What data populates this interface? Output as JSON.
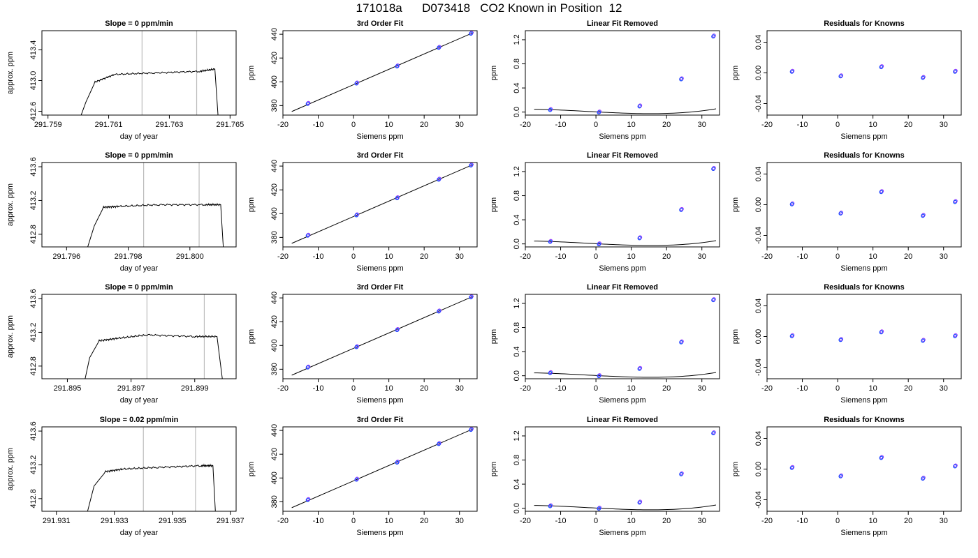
{
  "page": {
    "title_left": "171018a",
    "title_mid": "D073418",
    "title_right": "CO2 Known in Position  12"
  },
  "colors": {
    "trace": "#000000",
    "frame": "#000000",
    "vline": "#bbbbbb",
    "point_blue": "#1f3fff",
    "point_purple": "#9b30ff",
    "point_cyan": "#30a8ff"
  },
  "chart_data": [
    {
      "type": "line",
      "row": 0,
      "col": 0,
      "title": "Slope =  0  ppm/min",
      "xlabel": "day of year",
      "ylabel": "approx. ppm",
      "xlim": [
        291.7588,
        291.7652
      ],
      "ylim": [
        412.55,
        413.65
      ],
      "xticks": [
        "291.759",
        "291.761",
        "291.763",
        "291.765"
      ],
      "yticks": [
        "412.6",
        "413.0",
        "413.4"
      ],
      "trace_x": [
        291.76,
        291.76025,
        291.76055,
        291.7612,
        291.7625,
        291.764,
        291.7645,
        291.76462
      ],
      "trace_y": [
        412.45,
        412.72,
        412.98,
        413.08,
        413.1,
        413.12,
        413.15,
        412.45
      ],
      "vlines": [
        291.7621,
        291.7639
      ]
    },
    {
      "type": "scatter",
      "row": 0,
      "col": 1,
      "title": "3rd Order Fit",
      "xlabel": "Siemens ppm",
      "ylabel": "ppm",
      "xlim": [
        -20,
        35
      ],
      "ylim": [
        372,
        443
      ],
      "xticks": [
        "-20",
        "-10",
        "0",
        "10",
        "20",
        "30"
      ],
      "yticks": [
        "380",
        "400",
        "420",
        "440"
      ],
      "points_x": [
        -12.9,
        0.9,
        12.4,
        24.2,
        33.3
      ],
      "points_y": [
        381.8,
        398.9,
        413.3,
        428.9,
        440.8
      ],
      "fit": {
        "kind": "line",
        "x": [
          -17.5,
          34
        ],
        "y": [
          375,
          441.5
        ]
      }
    },
    {
      "type": "scatter",
      "row": 0,
      "col": 2,
      "title": "Linear Fit Removed",
      "xlabel": "Siemens ppm",
      "ylabel": "ppm",
      "xlim": [
        -20,
        35
      ],
      "ylim": [
        -0.05,
        1.35
      ],
      "xticks": [
        "-20",
        "-10",
        "0",
        "10",
        "20",
        "30"
      ],
      "yticks": [
        "0.0",
        "0.4",
        "0.8",
        "1.2"
      ],
      "points_x": [
        -12.9,
        0.9,
        12.4,
        24.2,
        33.3
      ],
      "points_y": [
        0.04,
        0.0,
        0.1,
        0.55,
        1.26
      ],
      "fit": {
        "kind": "cubic",
        "coef": [
          0.00358,
          -0.00305,
          2.5e-05,
          3.18e-06
        ],
        "x0": -17.5,
        "x1": 34
      }
    },
    {
      "type": "scatter",
      "row": 0,
      "col": 3,
      "title": "Residuals for Knowns",
      "xlabel": "Siemens ppm",
      "ylabel": "ppm",
      "xlim": [
        -20,
        35
      ],
      "ylim": [
        -0.055,
        0.055
      ],
      "xticks": [
        "-20",
        "-10",
        "0",
        "10",
        "20",
        "30"
      ],
      "yticks": [
        "-0.04",
        "0.00",
        "0.04"
      ],
      "points_x": [
        -12.9,
        0.9,
        12.4,
        24.2,
        33.3
      ],
      "points_y": [
        0.002,
        -0.004,
        0.008,
        -0.006,
        0.002
      ]
    },
    {
      "type": "line",
      "row": 1,
      "col": 0,
      "title": "Slope =  0  ppm/min",
      "xlabel": "day of year",
      "ylabel": "approx. ppm",
      "xlim": [
        291.7952,
        291.8015
      ],
      "ylim": [
        412.65,
        413.65
      ],
      "xticks": [
        "291.796",
        "291.798",
        "291.800"
      ],
      "yticks": [
        "412.8",
        "413.2",
        "413.6"
      ],
      "trace_x": [
        291.7966,
        291.7969,
        291.7972,
        291.7977,
        291.799,
        291.8005,
        291.801,
        291.8011
      ],
      "trace_y": [
        412.55,
        412.9,
        413.12,
        413.13,
        413.15,
        413.15,
        413.15,
        412.55
      ],
      "vlines": [
        291.7985,
        291.8003
      ]
    },
    {
      "type": "scatter",
      "row": 1,
      "col": 1,
      "title": "3rd Order Fit",
      "xlabel": "Siemens ppm",
      "ylabel": "ppm",
      "xlim": [
        -20,
        35
      ],
      "ylim": [
        372,
        443
      ],
      "xticks": [
        "-20",
        "-10",
        "0",
        "10",
        "20",
        "30"
      ],
      "yticks": [
        "380",
        "400",
        "420",
        "440"
      ],
      "points_x": [
        -12.9,
        0.9,
        12.4,
        24.2,
        33.3
      ],
      "points_y": [
        381.8,
        398.9,
        413.3,
        428.9,
        440.8
      ],
      "fit": {
        "kind": "line",
        "x": [
          -17.5,
          34
        ],
        "y": [
          375,
          441.5
        ]
      }
    },
    {
      "type": "scatter",
      "row": 1,
      "col": 2,
      "title": "Linear Fit Removed",
      "xlabel": "Siemens ppm",
      "ylabel": "ppm",
      "xlim": [
        -20,
        35
      ],
      "ylim": [
        -0.05,
        1.35
      ],
      "xticks": [
        "-20",
        "-10",
        "0",
        "10",
        "20",
        "30"
      ],
      "yticks": [
        "0.0",
        "0.4",
        "0.8",
        "1.2"
      ],
      "points_x": [
        -12.9,
        0.9,
        12.4,
        24.2,
        33.3
      ],
      "points_y": [
        0.04,
        0.0,
        0.1,
        0.57,
        1.25
      ],
      "fit": {
        "kind": "cubic",
        "coef": [
          0.00358,
          -0.00305,
          2.5e-05,
          3.18e-06
        ],
        "x0": -17.5,
        "x1": 34
      }
    },
    {
      "type": "scatter",
      "row": 1,
      "col": 3,
      "title": "Residuals for Knowns",
      "xlabel": "Siemens ppm",
      "ylabel": "ppm",
      "xlim": [
        -20,
        35
      ],
      "ylim": [
        -0.055,
        0.055
      ],
      "xticks": [
        "-20",
        "-10",
        "0",
        "10",
        "20",
        "30"
      ],
      "yticks": [
        "-0.04",
        "0.00",
        "0.04"
      ],
      "points_x": [
        -12.9,
        0.9,
        12.4,
        24.2,
        33.3
      ],
      "points_y": [
        0.001,
        -0.011,
        0.017,
        -0.014,
        0.004
      ]
    },
    {
      "type": "line",
      "row": 2,
      "col": 0,
      "title": "Slope =  0  ppm/min",
      "xlabel": "day of year",
      "ylabel": "approx. ppm",
      "xlim": [
        291.8942,
        291.9003
      ],
      "ylim": [
        412.65,
        413.65
      ],
      "xticks": [
        "291.895",
        "291.897",
        "291.899"
      ],
      "yticks": [
        "412.8",
        "413.2",
        "413.6"
      ],
      "trace_x": [
        291.8955,
        291.8957,
        291.896,
        291.8966,
        291.8975,
        291.899,
        291.8997,
        291.8999
      ],
      "trace_y": [
        412.55,
        412.9,
        413.1,
        413.13,
        413.17,
        413.15,
        413.15,
        412.55
      ],
      "vlines": [
        291.8975,
        291.8993
      ]
    },
    {
      "type": "scatter",
      "row": 2,
      "col": 1,
      "title": "3rd Order Fit",
      "xlabel": "Siemens ppm",
      "ylabel": "ppm",
      "xlim": [
        -20,
        35
      ],
      "ylim": [
        372,
        443
      ],
      "xticks": [
        "-20",
        "-10",
        "0",
        "10",
        "20",
        "30"
      ],
      "yticks": [
        "380",
        "400",
        "420",
        "440"
      ],
      "points_x": [
        -12.9,
        0.9,
        12.4,
        24.2,
        33.3
      ],
      "points_y": [
        381.8,
        398.9,
        413.3,
        428.9,
        440.8
      ],
      "fit": {
        "kind": "line",
        "x": [
          -17.5,
          34
        ],
        "y": [
          375,
          441.5
        ]
      }
    },
    {
      "type": "scatter",
      "row": 2,
      "col": 2,
      "title": "Linear Fit Removed",
      "xlabel": "Siemens ppm",
      "ylabel": "ppm",
      "xlim": [
        -20,
        35
      ],
      "ylim": [
        -0.05,
        1.35
      ],
      "xticks": [
        "-20",
        "-10",
        "0",
        "10",
        "20",
        "30"
      ],
      "yticks": [
        "0.0",
        "0.4",
        "0.8",
        "1.2"
      ],
      "points_x": [
        -12.9,
        0.9,
        12.4,
        24.2,
        33.3
      ],
      "points_y": [
        0.05,
        0.0,
        0.12,
        0.56,
        1.26
      ],
      "fit": {
        "kind": "cubic",
        "coef": [
          0.00358,
          -0.00305,
          2.5e-05,
          3.18e-06
        ],
        "x0": -17.5,
        "x1": 34
      }
    },
    {
      "type": "scatter",
      "row": 2,
      "col": 3,
      "title": "Residuals for Knowns",
      "xlabel": "Siemens ppm",
      "ylabel": "ppm",
      "xlim": [
        -20,
        35
      ],
      "ylim": [
        -0.055,
        0.055
      ],
      "xticks": [
        "-20",
        "-10",
        "0",
        "10",
        "20",
        "30"
      ],
      "yticks": [
        "-0.04",
        "0.00",
        "0.04"
      ],
      "points_x": [
        -12.9,
        0.9,
        12.4,
        24.2,
        33.3
      ],
      "points_y": [
        0.001,
        -0.004,
        0.006,
        -0.005,
        0.001
      ]
    },
    {
      "type": "line",
      "row": 3,
      "col": 0,
      "title": "Slope =  0.02  ppm/min",
      "xlabel": "day of year",
      "ylabel": "approx. ppm",
      "xlim": [
        291.9305,
        291.9372
      ],
      "ylim": [
        412.65,
        413.65
      ],
      "xticks": [
        "291.931",
        "291.933",
        "291.935",
        "291.937"
      ],
      "yticks": [
        "412.8",
        "413.2",
        "413.6"
      ],
      "trace_x": [
        291.932,
        291.9323,
        291.9327,
        291.9333,
        291.9345,
        291.936,
        291.9364,
        291.9365
      ],
      "trace_y": [
        412.55,
        412.95,
        413.12,
        413.15,
        413.17,
        413.19,
        413.19,
        412.55
      ],
      "vlines": [
        291.934,
        291.9358
      ]
    },
    {
      "type": "scatter",
      "row": 3,
      "col": 1,
      "title": "3rd Order Fit",
      "xlabel": "Siemens ppm",
      "ylabel": "ppm",
      "xlim": [
        -20,
        35
      ],
      "ylim": [
        372,
        443
      ],
      "xticks": [
        "-20",
        "-10",
        "0",
        "10",
        "20",
        "30"
      ],
      "yticks": [
        "380",
        "400",
        "420",
        "440"
      ],
      "points_x": [
        -12.9,
        0.9,
        12.4,
        24.2,
        33.3
      ],
      "points_y": [
        381.8,
        398.9,
        413.3,
        428.9,
        440.8
      ],
      "fit": {
        "kind": "line",
        "x": [
          -17.5,
          34
        ],
        "y": [
          375,
          441.5
        ]
      }
    },
    {
      "type": "scatter",
      "row": 3,
      "col": 2,
      "title": "Linear Fit Removed",
      "xlabel": "Siemens ppm",
      "ylabel": "ppm",
      "xlim": [
        -20,
        35
      ],
      "ylim": [
        -0.05,
        1.35
      ],
      "xticks": [
        "-20",
        "-10",
        "0",
        "10",
        "20",
        "30"
      ],
      "yticks": [
        "0.0",
        "0.4",
        "0.8",
        "1.2"
      ],
      "points_x": [
        -12.9,
        0.9,
        12.4,
        24.2,
        33.3
      ],
      "points_y": [
        0.04,
        0.0,
        0.1,
        0.57,
        1.25
      ],
      "fit": {
        "kind": "cubic",
        "coef": [
          0.00358,
          -0.00305,
          2.5e-05,
          3.18e-06
        ],
        "x0": -17.5,
        "x1": 34
      }
    },
    {
      "type": "scatter",
      "row": 3,
      "col": 3,
      "title": "Residuals for Knowns",
      "xlabel": "Siemens ppm",
      "ylabel": "ppm",
      "xlim": [
        -20,
        35
      ],
      "ylim": [
        -0.055,
        0.055
      ],
      "xticks": [
        "-20",
        "-10",
        "0",
        "10",
        "20",
        "30"
      ],
      "yticks": [
        "-0.04",
        "0.00",
        "0.04"
      ],
      "points_x": [
        -12.9,
        0.9,
        12.4,
        24.2,
        33.3
      ],
      "points_y": [
        0.002,
        -0.009,
        0.015,
        -0.012,
        0.004
      ]
    }
  ]
}
